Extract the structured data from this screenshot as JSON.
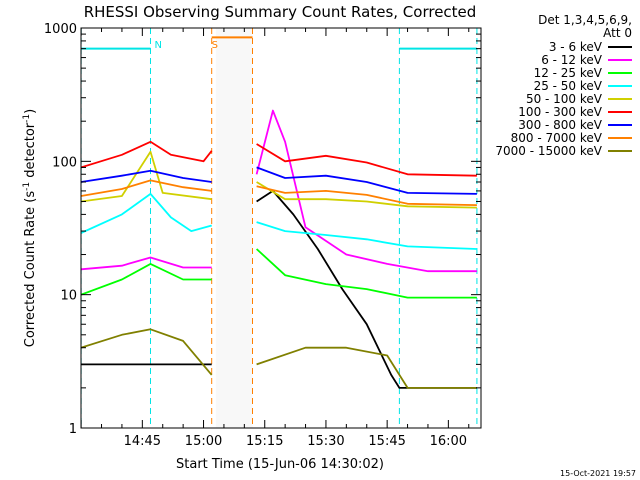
{
  "chart_data": {
    "type": "line",
    "title": "RHESSI Observing Summary Count Rates, Corrected",
    "xlabel": "Start Time (15-Jun-06 14:30:02)",
    "ylabel": "Corrected Count Rate (s⁻¹ detector⁻¹)",
    "ylabel_parts": {
      "main": "Corrected Count Rate (s",
      "sup1": "-1",
      "mid": " detector",
      "sup2": "-1",
      "end": ")"
    },
    "y_scale": "log",
    "ylim": [
      1,
      1000
    ],
    "xlim": [
      "14:30",
      "16:08"
    ],
    "x_ticks": [
      "14:45",
      "15:00",
      "15:15",
      "15:30",
      "15:45",
      "16:00"
    ],
    "y_ticks": [
      "1",
      "10",
      "100",
      "1000"
    ],
    "legend": {
      "placement": "top-right",
      "header": [
        "Det 1,3,4,5,6,9,",
        "Att 0"
      ]
    },
    "timestamp": "15-Oct-2021 19:57",
    "annotations": [
      {
        "text": "N",
        "color": "#00e5e5",
        "x": "14:47"
      },
      {
        "text": "S",
        "color": "#ff8000",
        "x": "15:01"
      }
    ],
    "flags": {
      "night": {
        "color": "#00e5e5",
        "intervals": [
          [
            "14:30",
            "14:47"
          ],
          [
            "15:48",
            "16:07"
          ]
        ],
        "level": 700
      },
      "saa": {
        "color": "#ff8000",
        "intervals": [
          [
            "15:02",
            "15:12"
          ]
        ],
        "level": 850
      }
    },
    "gaps": [
      [
        "15:03",
        "15:12"
      ]
    ],
    "series": [
      {
        "name": "3 - 6 keV",
        "color": "#000000",
        "points": [
          [
            "14:30",
            3
          ],
          [
            "14:47",
            3
          ],
          [
            "15:02",
            3
          ],
          [
            "15:13",
            50
          ],
          [
            "15:17",
            60
          ],
          [
            "15:22",
            40
          ],
          [
            "15:28",
            22
          ],
          [
            "15:34",
            11
          ],
          [
            "15:40",
            6
          ],
          [
            "15:46",
            2.5
          ],
          [
            "15:48",
            2
          ],
          [
            "16:07",
            2
          ]
        ]
      },
      {
        "name": "6 - 12 keV",
        "color": "#ff00ff",
        "points": [
          [
            "14:30",
            15.5
          ],
          [
            "14:40",
            16.5
          ],
          [
            "14:47",
            19
          ],
          [
            "14:55",
            16
          ],
          [
            "15:02",
            16
          ],
          [
            "15:13",
            80
          ],
          [
            "15:17",
            240
          ],
          [
            "15:20",
            140
          ],
          [
            "15:25",
            32
          ],
          [
            "15:35",
            20
          ],
          [
            "15:45",
            17
          ],
          [
            "15:55",
            15
          ],
          [
            "16:07",
            15
          ]
        ]
      },
      {
        "name": "12 - 25 keV",
        "color": "#00ff00",
        "points": [
          [
            "14:30",
            10
          ],
          [
            "14:40",
            13
          ],
          [
            "14:47",
            17
          ],
          [
            "14:55",
            13
          ],
          [
            "15:02",
            13
          ],
          [
            "15:13",
            22
          ],
          [
            "15:20",
            14
          ],
          [
            "15:30",
            12
          ],
          [
            "15:40",
            11
          ],
          [
            "15:50",
            9.5
          ],
          [
            "16:07",
            9.5
          ]
        ]
      },
      {
        "name": "25 - 50 keV",
        "color": "#00ffff",
        "points": [
          [
            "14:30",
            29
          ],
          [
            "14:40",
            40
          ],
          [
            "14:47",
            57
          ],
          [
            "14:52",
            38
          ],
          [
            "14:57",
            30
          ],
          [
            "15:02",
            33
          ],
          [
            "15:13",
            35
          ],
          [
            "15:20",
            30
          ],
          [
            "15:30",
            28
          ],
          [
            "15:40",
            26
          ],
          [
            "15:50",
            23
          ],
          [
            "16:07",
            22
          ]
        ]
      },
      {
        "name": "50 - 100 keV",
        "color": "#d0d000",
        "points": [
          [
            "14:30",
            50
          ],
          [
            "14:40",
            55
          ],
          [
            "14:47",
            118
          ],
          [
            "14:50",
            58
          ],
          [
            "15:02",
            52
          ],
          [
            "15:13",
            70
          ],
          [
            "15:20",
            52
          ],
          [
            "15:30",
            52
          ],
          [
            "15:40",
            50
          ],
          [
            "15:50",
            46
          ],
          [
            "16:07",
            45
          ]
        ]
      },
      {
        "name": "100 - 300 keV",
        "color": "#ff0000",
        "points": [
          [
            "14:30",
            90
          ],
          [
            "14:40",
            112
          ],
          [
            "14:47",
            140
          ],
          [
            "14:52",
            112
          ],
          [
            "15:00",
            100
          ],
          [
            "15:02",
            120
          ],
          [
            "15:13",
            135
          ],
          [
            "15:20",
            100
          ],
          [
            "15:30",
            110
          ],
          [
            "15:40",
            98
          ],
          [
            "15:50",
            80
          ],
          [
            "16:07",
            78
          ]
        ]
      },
      {
        "name": "300 - 800 keV",
        "color": "#0000ff",
        "points": [
          [
            "14:30",
            70
          ],
          [
            "14:40",
            78
          ],
          [
            "14:47",
            85
          ],
          [
            "14:55",
            75
          ],
          [
            "15:02",
            70
          ],
          [
            "15:13",
            90
          ],
          [
            "15:20",
            75
          ],
          [
            "15:30",
            78
          ],
          [
            "15:40",
            70
          ],
          [
            "15:50",
            58
          ],
          [
            "16:07",
            57
          ]
        ]
      },
      {
        "name": "800 - 7000 keV",
        "color": "#ff8000",
        "points": [
          [
            "14:30",
            55
          ],
          [
            "14:40",
            62
          ],
          [
            "14:47",
            72
          ],
          [
            "14:55",
            64
          ],
          [
            "15:02",
            60
          ],
          [
            "15:13",
            65
          ],
          [
            "15:20",
            58
          ],
          [
            "15:30",
            60
          ],
          [
            "15:40",
            56
          ],
          [
            "15:50",
            48
          ],
          [
            "16:07",
            47
          ]
        ]
      },
      {
        "name": "7000 - 15000 keV",
        "color": "#808000",
        "points": [
          [
            "14:30",
            4
          ],
          [
            "14:40",
            5
          ],
          [
            "14:47",
            5.5
          ],
          [
            "14:55",
            4.5
          ],
          [
            "15:02",
            2.5
          ],
          [
            "15:13",
            3
          ],
          [
            "15:25",
            4
          ],
          [
            "15:35",
            4
          ],
          [
            "15:45",
            3.5
          ],
          [
            "15:50",
            2
          ],
          [
            "16:07",
            2
          ]
        ]
      }
    ]
  }
}
